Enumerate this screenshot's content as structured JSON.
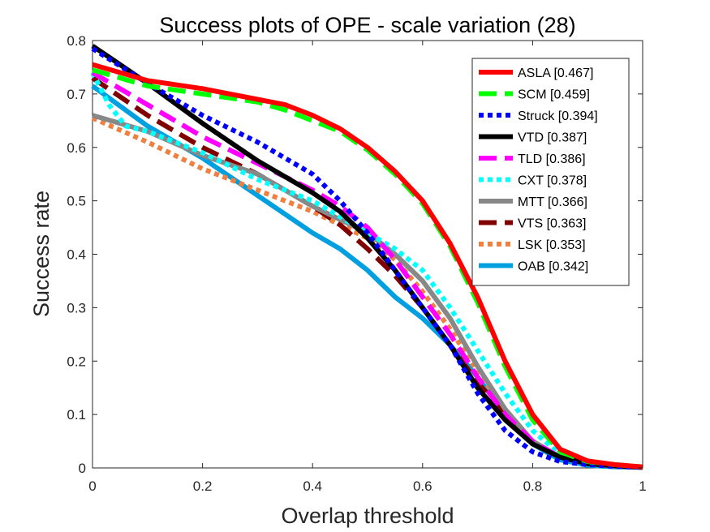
{
  "chart_data": {
    "type": "line",
    "title": "Success plots of OPE - scale variation (28)",
    "xlabel": "Overlap threshold",
    "ylabel": "Success rate",
    "xlim": [
      0,
      1
    ],
    "ylim": [
      0,
      0.8
    ],
    "xticks": [
      "0",
      "0.2",
      "0.4",
      "0.6",
      "0.8",
      "1"
    ],
    "yticks": [
      "0",
      "0.1",
      "0.2",
      "0.3",
      "0.4",
      "0.5",
      "0.6",
      "0.7",
      "0.8"
    ],
    "grid": false,
    "legend_position": "top-right",
    "series": [
      {
        "name": "ASLA [0.467]",
        "color": "#ff0000",
        "dash": "solid",
        "x": [
          0,
          0.1,
          0.2,
          0.3,
          0.35,
          0.4,
          0.45,
          0.5,
          0.55,
          0.6,
          0.65,
          0.7,
          0.75,
          0.8,
          0.85,
          0.9,
          0.95,
          1
        ],
        "y": [
          0.755,
          0.725,
          0.71,
          0.69,
          0.68,
          0.66,
          0.635,
          0.6,
          0.555,
          0.5,
          0.42,
          0.32,
          0.2,
          0.1,
          0.035,
          0.013,
          0.006,
          0.002
        ]
      },
      {
        "name": "SCM [0.459]",
        "color": "#00ff00",
        "dash": "dashed",
        "x": [
          0,
          0.1,
          0.2,
          0.3,
          0.35,
          0.4,
          0.45,
          0.5,
          0.55,
          0.6,
          0.65,
          0.7,
          0.75,
          0.8,
          0.85,
          0.9,
          0.95,
          1
        ],
        "y": [
          0.745,
          0.715,
          0.7,
          0.685,
          0.67,
          0.65,
          0.63,
          0.595,
          0.55,
          0.495,
          0.415,
          0.31,
          0.19,
          0.09,
          0.03,
          0.012,
          0.006,
          0.002
        ]
      },
      {
        "name": "Struck [0.394]",
        "color": "#0000ff",
        "dash": "dotted",
        "x": [
          0,
          0.1,
          0.2,
          0.3,
          0.4,
          0.45,
          0.5,
          0.55,
          0.6,
          0.65,
          0.7,
          0.75,
          0.8,
          0.85,
          0.9,
          0.95,
          1
        ],
        "y": [
          0.785,
          0.72,
          0.66,
          0.61,
          0.55,
          0.5,
          0.44,
          0.37,
          0.3,
          0.23,
          0.14,
          0.07,
          0.03,
          0.012,
          0.006,
          0.003,
          0.001
        ]
      },
      {
        "name": "VTD [0.387]",
        "color": "#000000",
        "dash": "solid",
        "x": [
          0,
          0.1,
          0.2,
          0.3,
          0.4,
          0.45,
          0.5,
          0.55,
          0.6,
          0.65,
          0.7,
          0.75,
          0.8,
          0.85,
          0.9,
          0.95,
          1
        ],
        "y": [
          0.79,
          0.72,
          0.645,
          0.575,
          0.515,
          0.48,
          0.43,
          0.37,
          0.3,
          0.23,
          0.15,
          0.09,
          0.045,
          0.02,
          0.008,
          0.004,
          0.001
        ]
      },
      {
        "name": "TLD [0.386]",
        "color": "#ff00ff",
        "dash": "dashed",
        "x": [
          0,
          0.1,
          0.2,
          0.3,
          0.4,
          0.45,
          0.5,
          0.55,
          0.6,
          0.65,
          0.7,
          0.75,
          0.8,
          0.85,
          0.9,
          0.95,
          1
        ],
        "y": [
          0.74,
          0.68,
          0.62,
          0.57,
          0.52,
          0.49,
          0.45,
          0.39,
          0.32,
          0.25,
          0.17,
          0.1,
          0.05,
          0.02,
          0.008,
          0.004,
          0.001
        ]
      },
      {
        "name": "CXT [0.378]",
        "color": "#00ffff",
        "dash": "dotted",
        "x": [
          0,
          0.03,
          0.06,
          0.1,
          0.2,
          0.3,
          0.4,
          0.5,
          0.55,
          0.6,
          0.65,
          0.7,
          0.75,
          0.8,
          0.85,
          0.9,
          0.95,
          1
        ],
        "y": [
          0.74,
          0.68,
          0.64,
          0.63,
          0.59,
          0.54,
          0.5,
          0.44,
          0.41,
          0.37,
          0.3,
          0.22,
          0.14,
          0.07,
          0.025,
          0.01,
          0.004,
          0.001
        ]
      },
      {
        "name": "MTT [0.366]",
        "color": "#888888",
        "dash": "solid",
        "x": [
          0,
          0.1,
          0.2,
          0.3,
          0.4,
          0.5,
          0.55,
          0.6,
          0.65,
          0.7,
          0.75,
          0.8,
          0.85,
          0.9,
          0.95,
          1
        ],
        "y": [
          0.66,
          0.63,
          0.585,
          0.55,
          0.49,
          0.44,
          0.4,
          0.35,
          0.28,
          0.19,
          0.11,
          0.05,
          0.02,
          0.008,
          0.003,
          0.001
        ]
      },
      {
        "name": "VTS [0.363]",
        "color": "#800000",
        "dash": "dashed",
        "x": [
          0,
          0.1,
          0.2,
          0.3,
          0.4,
          0.45,
          0.5,
          0.55,
          0.6,
          0.65,
          0.7,
          0.75,
          0.8,
          0.85,
          0.9,
          0.95,
          1
        ],
        "y": [
          0.73,
          0.66,
          0.6,
          0.55,
          0.49,
          0.455,
          0.41,
          0.36,
          0.3,
          0.23,
          0.16,
          0.1,
          0.05,
          0.02,
          0.008,
          0.004,
          0.001
        ]
      },
      {
        "name": "LSK [0.353]",
        "color": "#f08040",
        "dash": "dotted",
        "x": [
          0,
          0.1,
          0.2,
          0.3,
          0.4,
          0.5,
          0.55,
          0.6,
          0.65,
          0.7,
          0.75,
          0.8,
          0.85,
          0.9,
          0.95,
          1
        ],
        "y": [
          0.655,
          0.61,
          0.56,
          0.52,
          0.48,
          0.43,
          0.39,
          0.33,
          0.26,
          0.18,
          0.11,
          0.05,
          0.02,
          0.008,
          0.003,
          0.001
        ]
      },
      {
        "name": "OAB [0.342]",
        "color": "#00a0e0",
        "dash": "solid",
        "x": [
          0,
          0.1,
          0.2,
          0.3,
          0.4,
          0.45,
          0.5,
          0.55,
          0.6,
          0.65,
          0.7,
          0.75,
          0.8,
          0.85,
          0.9,
          0.95,
          1
        ],
        "y": [
          0.715,
          0.64,
          0.58,
          0.51,
          0.44,
          0.41,
          0.37,
          0.32,
          0.28,
          0.23,
          0.17,
          0.1,
          0.045,
          0.015,
          0.005,
          0.002,
          0.001
        ]
      }
    ]
  }
}
